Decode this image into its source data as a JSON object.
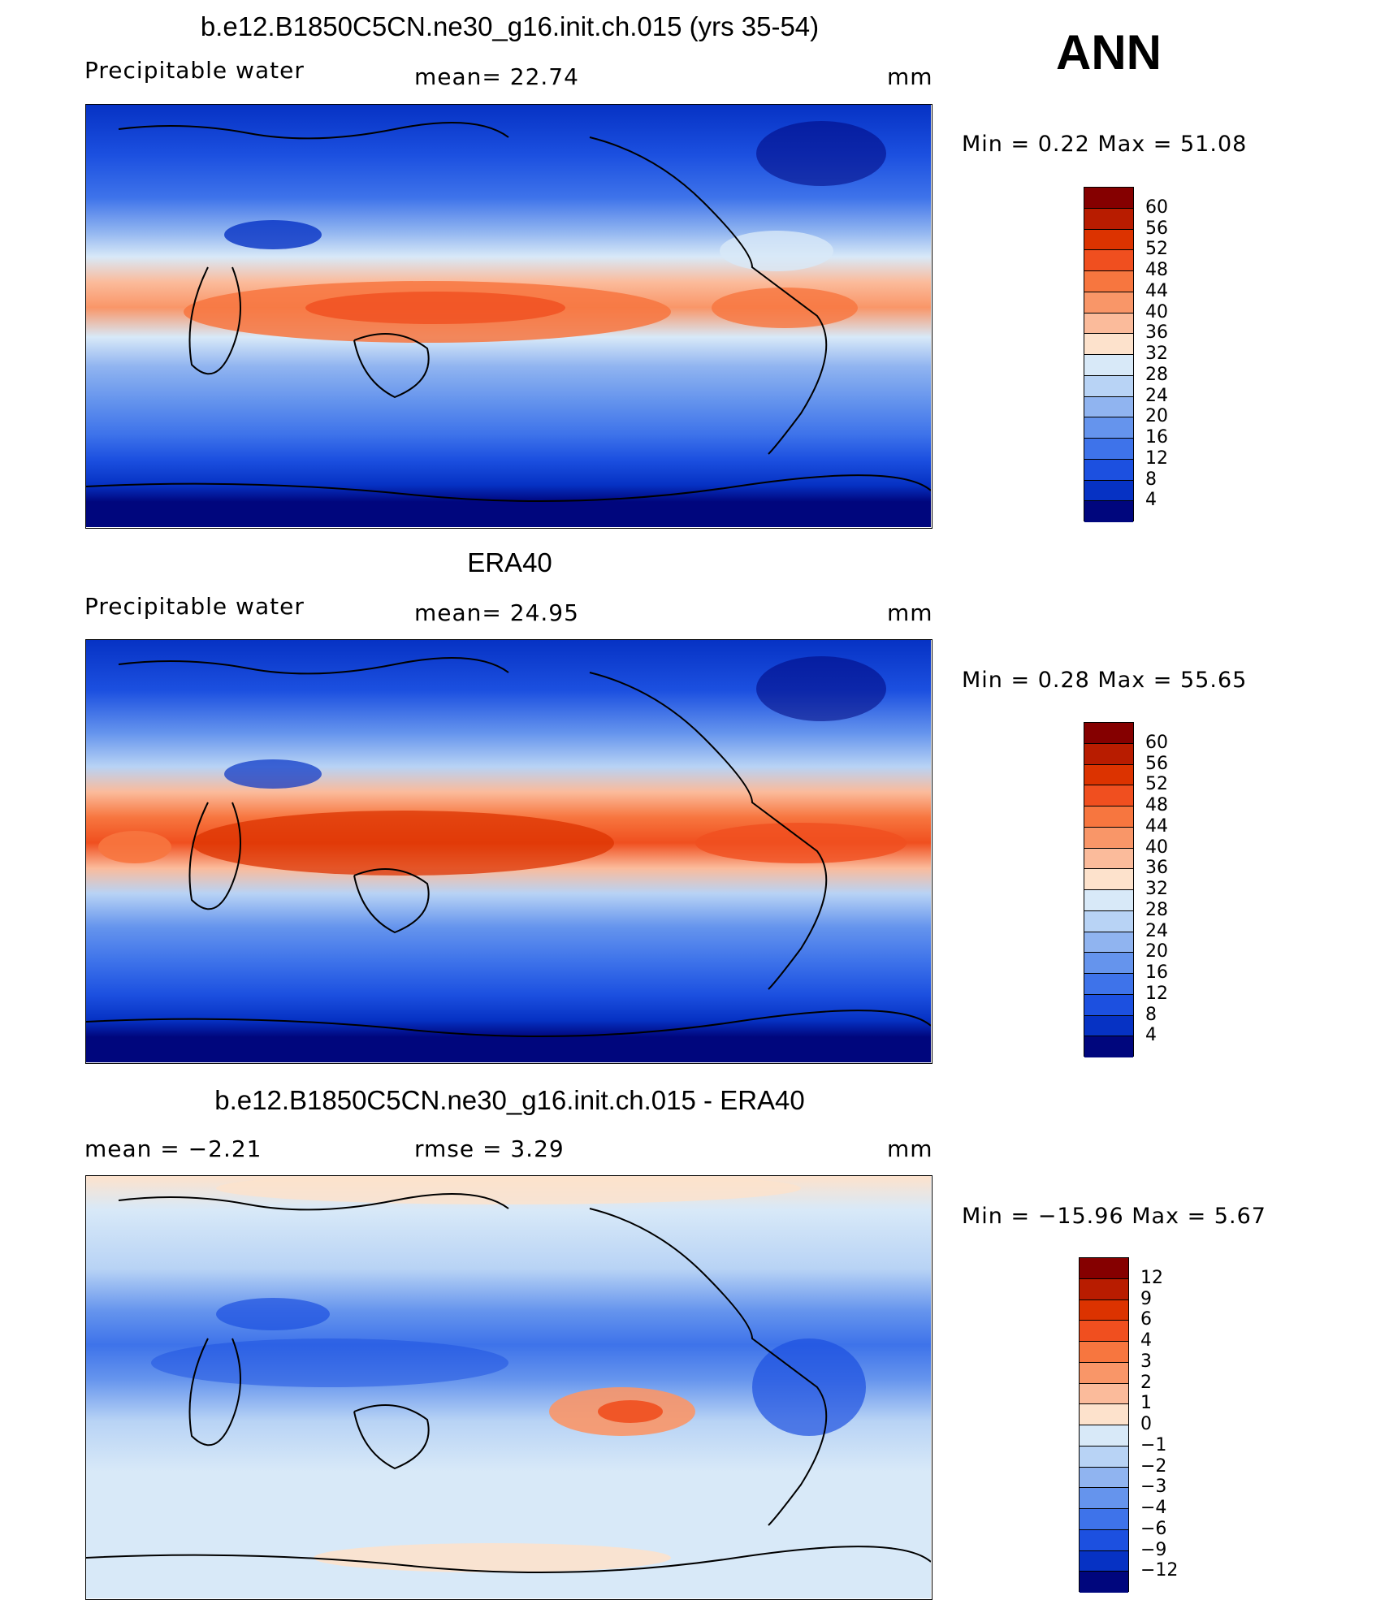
{
  "season": "ANN",
  "panels": [
    {
      "title": "b.e12.B1850C5CN.ne30_g16.init.ch.015 (yrs 35-54)",
      "left_label": "Precipitable  water",
      "center_label": "mean=   22.74",
      "units": "mm",
      "minmax": "Min  =     0.22  Max  =    51.08",
      "kind": "abs"
    },
    {
      "title": "ERA40",
      "left_label": "Precipitable  water",
      "center_label": "mean=   24.95",
      "units": "mm",
      "minmax": "Min  =     0.28  Max  =    55.65",
      "kind": "abs2"
    },
    {
      "title": "b.e12.B1850C5CN.ne30_g16.init.ch.015 - ERA40",
      "left_label": "mean  =    −2.21",
      "center_label": "rmse  =     3.29",
      "units": "mm",
      "minmax": "Min  =  −15.96  Max  =     5.67",
      "kind": "diff"
    }
  ],
  "colorbars": {
    "abs": {
      "labels": [
        "60",
        "56",
        "52",
        "48",
        "44",
        "40",
        "36",
        "32",
        "28",
        "24",
        "20",
        "16",
        "12",
        "8",
        "4"
      ],
      "colors": [
        "#850000",
        "#b81c00",
        "#dc3300",
        "#f04f1f",
        "#f7763f",
        "#f99668",
        "#fbbb9b",
        "#fde2cc",
        "#d8e9f8",
        "#b8d3f5",
        "#90b4f0",
        "#6594ed",
        "#3e73ea",
        "#1c50e0",
        "#0632c4",
        "#00067d"
      ]
    },
    "diff": {
      "labels": [
        "12",
        "9",
        "6",
        "4",
        "3",
        "2",
        "1",
        "0",
        "−1",
        "−2",
        "−3",
        "−4",
        "−6",
        "−9",
        "−12"
      ],
      "colors": [
        "#850000",
        "#b81c00",
        "#dc3300",
        "#f04f1f",
        "#f7763f",
        "#f99668",
        "#fbbb9b",
        "#fde2cc",
        "#d8e9f8",
        "#b8d3f5",
        "#90b4f0",
        "#6594ed",
        "#3e73ea",
        "#1c50e0",
        "#0632c4",
        "#00067d"
      ]
    }
  }
}
